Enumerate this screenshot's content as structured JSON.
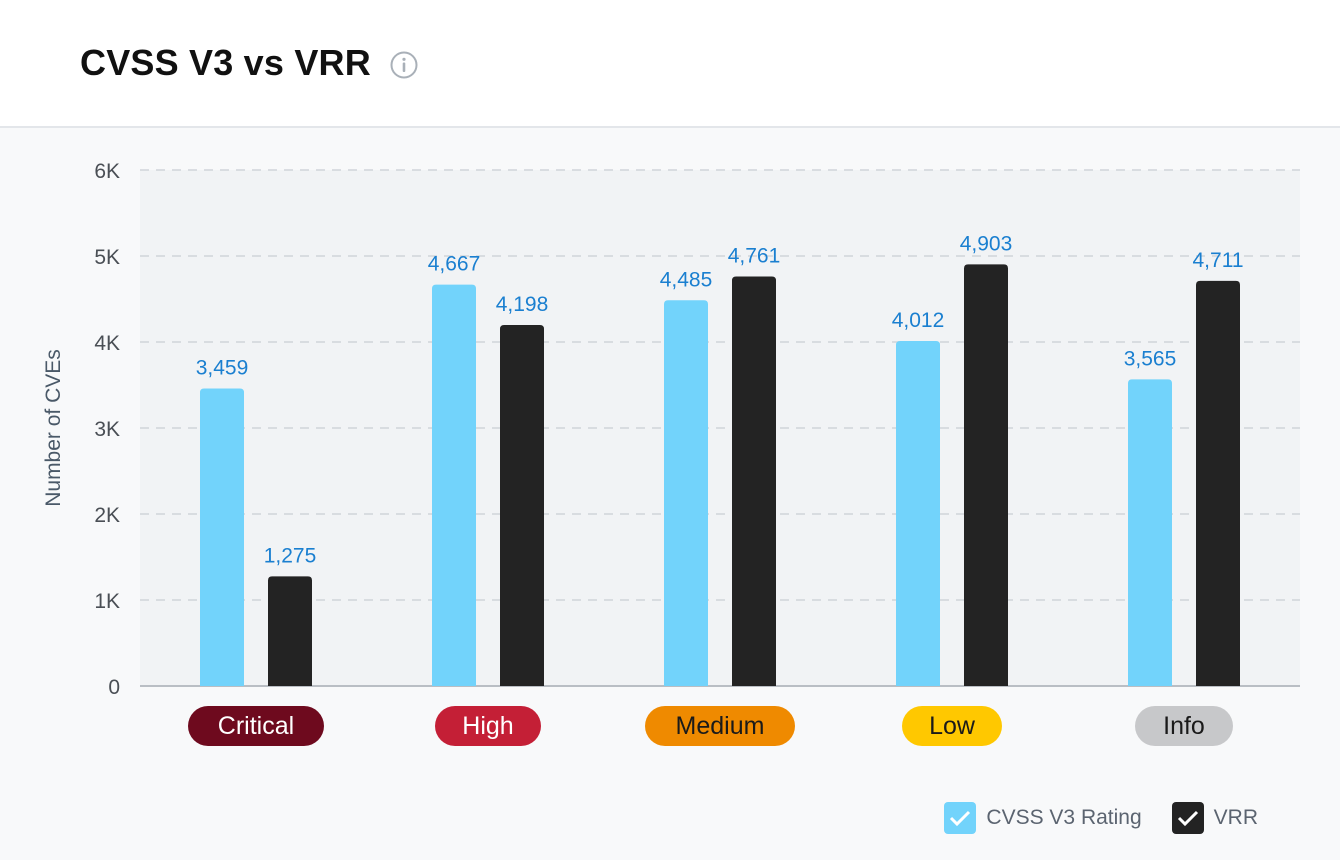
{
  "header": {
    "title": "CVSS V3 vs VRR",
    "info_icon": "info-circle-icon"
  },
  "chart_data": {
    "type": "bar",
    "categories": [
      "Critical",
      "High",
      "Medium",
      "Low",
      "Info"
    ],
    "category_colors": [
      "#6e0a1e",
      "#c41f36",
      "#ef8a00",
      "#ffc800",
      "#c7c8ca"
    ],
    "category_text_colors": [
      "#ffffff",
      "#ffffff",
      "#1a1a1a",
      "#1a1a1a",
      "#1a1a1a"
    ],
    "series": [
      {
        "name": "CVSS V3 Rating",
        "color": "#72d3fb",
        "values": [
          3459,
          4667,
          4485,
          4012,
          3565
        ]
      },
      {
        "name": "VRR",
        "color": "#232323",
        "values": [
          1275,
          4198,
          4761,
          4903,
          4711
        ]
      }
    ],
    "ylabel": "Number of CVEs",
    "ylim": [
      0,
      6000
    ],
    "yticks": [
      0,
      1000,
      2000,
      3000,
      4000,
      5000,
      6000
    ],
    "ytick_labels": [
      "0",
      "1K",
      "2K",
      "3K",
      "4K",
      "5K",
      "6K"
    ],
    "data_label_color": "#1a7fd0",
    "grid": true,
    "legend_position": "bottom-right"
  },
  "legend": {
    "items": [
      {
        "label": "CVSS V3 Rating",
        "color": "#72d3fb",
        "icon": "checkmark-icon"
      },
      {
        "label": "VRR",
        "color": "#232323",
        "icon": "checkmark-icon"
      }
    ]
  }
}
